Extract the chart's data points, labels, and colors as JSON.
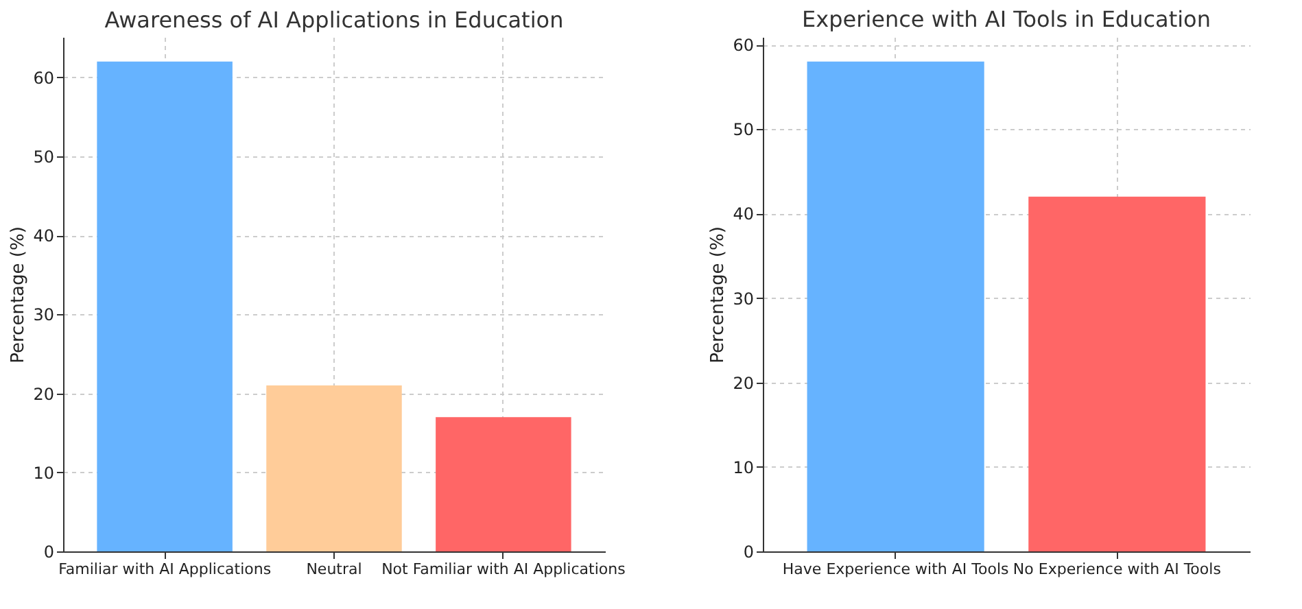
{
  "chart_data": [
    {
      "type": "bar",
      "title": "Awareness of AI Applications in Education",
      "ylabel": "Percentage (%)",
      "categories": [
        "Familiar with AI Applications",
        "Neutral",
        "Not Familiar with AI Applications"
      ],
      "values": [
        62,
        21,
        17
      ],
      "colors": [
        "#66b3ff",
        "#ffcc99",
        "#ff6666"
      ],
      "ylim": [
        0,
        65.1
      ],
      "yticks": [
        0,
        10,
        20,
        30,
        40,
        50,
        60
      ],
      "grid": true
    },
    {
      "type": "bar",
      "title": "Experience with AI Tools in Education",
      "ylabel": "Percentage (%)",
      "categories": [
        "Have Experience with AI Tools",
        "No Experience with AI Tools"
      ],
      "values": [
        58,
        42
      ],
      "colors": [
        "#66b3ff",
        "#ff6666"
      ],
      "ylim": [
        0,
        60.9
      ],
      "yticks": [
        0,
        10,
        20,
        30,
        40,
        50,
        60
      ],
      "grid": true
    }
  ]
}
